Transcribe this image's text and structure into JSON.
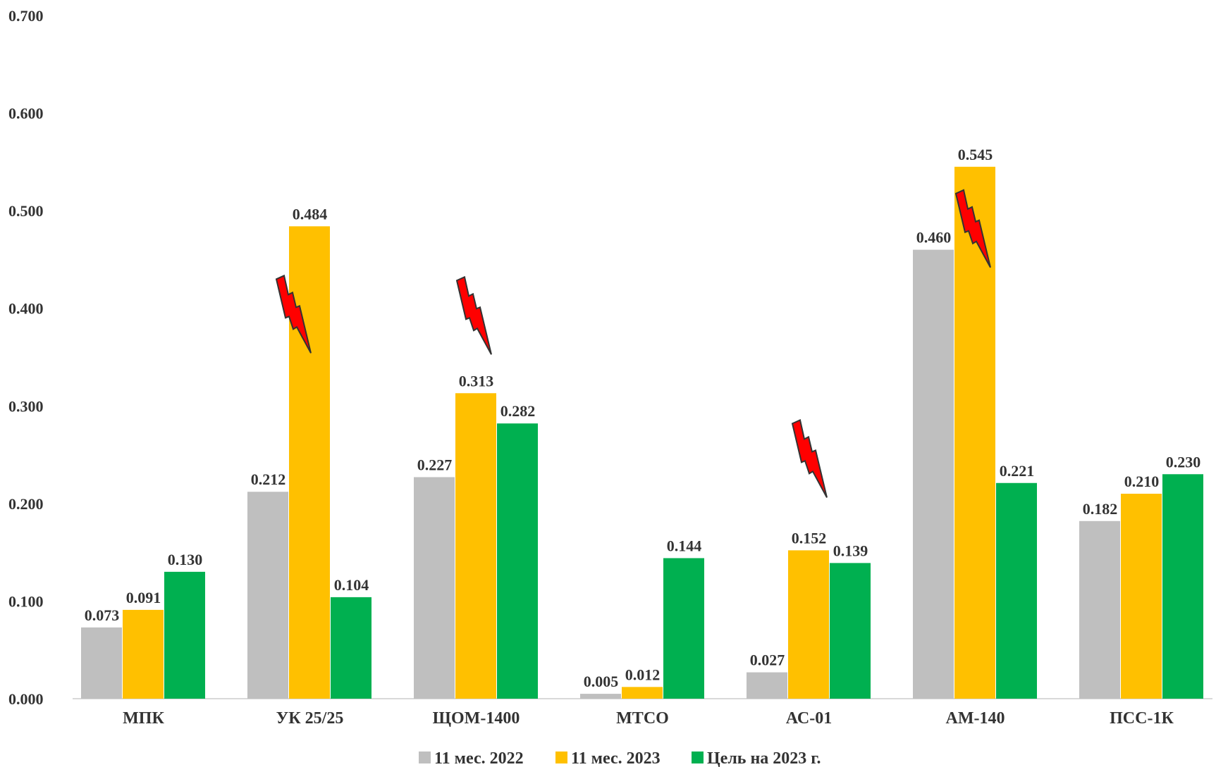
{
  "chart_data": {
    "type": "bar",
    "title": "",
    "xlabel": "",
    "ylabel": "",
    "ylim": [
      0,
      0.7
    ],
    "yticks": [
      "0.000",
      "0.100",
      "0.200",
      "0.300",
      "0.400",
      "0.500",
      "0.600",
      "0.700"
    ],
    "grid": false,
    "legend_position": "bottom",
    "categories": [
      "МПК",
      "УК 25/25",
      "ЩОМ-1400",
      "МТСО",
      "АС-01",
      "АМ-140",
      "ПСС-1К"
    ],
    "series": [
      {
        "name": "11 мес. 2022",
        "color": "#bfbfbf",
        "values": [
          0.073,
          0.212,
          0.227,
          0.005,
          0.027,
          0.46,
          0.182
        ],
        "labels": [
          "0.073",
          "0.212",
          "0.227",
          "0.005",
          "0.027",
          "0.460",
          "0.182"
        ]
      },
      {
        "name": "11 мес. 2023",
        "color": "#ffc000",
        "values": [
          0.091,
          0.484,
          0.313,
          0.012,
          0.152,
          0.545,
          0.21
        ],
        "labels": [
          "0.091",
          "0.484",
          "0.313",
          "0.012",
          "0.152",
          "0.545",
          "0.210"
        ]
      },
      {
        "name": "Цель на 2023 г.",
        "color": "#00b050",
        "values": [
          0.13,
          0.104,
          0.282,
          0.144,
          0.139,
          0.221,
          0.23
        ],
        "labels": [
          "0.130",
          "0.104",
          "0.282",
          "0.144",
          "0.139",
          "0.221",
          "0.230"
        ]
      }
    ],
    "annotations": {
      "icon": "lightning-bolt-icon",
      "color": "#ff0000",
      "marked_bars": [
        {
          "category": "УК 25/25",
          "series": "11 мес. 2023"
        },
        {
          "category": "ЩОМ-1400",
          "series": "11 мес. 2023"
        },
        {
          "category": "АС-01",
          "series": "11 мес. 2023"
        },
        {
          "category": "АМ-140",
          "series": "11 мес. 2023"
        }
      ]
    }
  }
}
